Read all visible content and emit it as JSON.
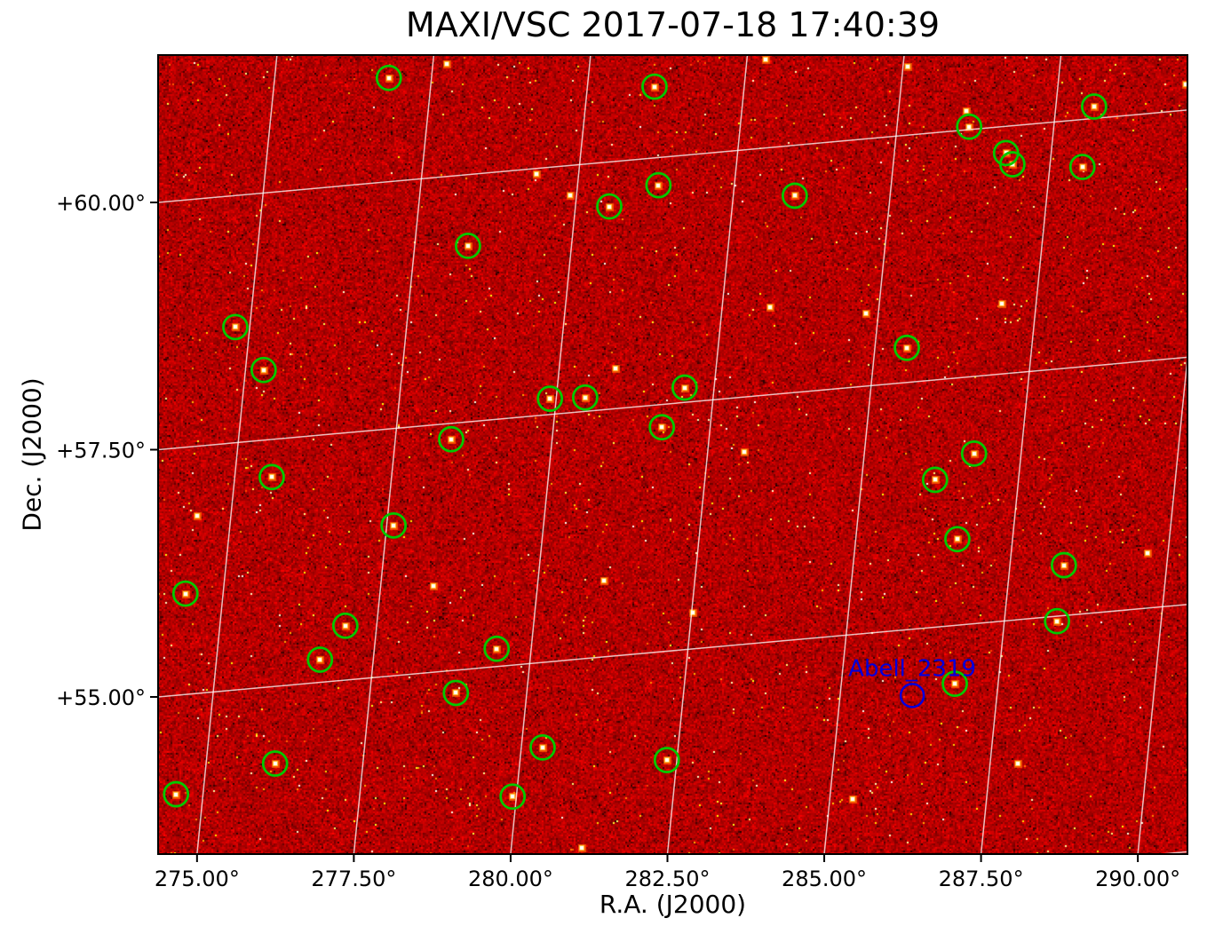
{
  "title": "MAXI/VSC 2017-07-18 17:40:39",
  "colors": {
    "grid": "#ffffff",
    "axes": "#000000",
    "source_circle": "#00c800",
    "annotation": "#0000dd",
    "background_sky": "#a50f00"
  },
  "chart_data": {
    "type": "heatmap",
    "title": "MAXI/VSC 2017-07-18 17:40:39",
    "xlabel": "R.A. (J2000)",
    "ylabel": "Dec. (J2000)",
    "x_axis": {
      "name": "R.A. (J2000)",
      "tick_values": [
        275.0,
        277.5,
        280.0,
        282.5,
        285.0,
        287.5,
        290.0
      ],
      "tick_labels": [
        "275.00°",
        "277.50°",
        "280.00°",
        "282.50°",
        "285.00°",
        "287.50°",
        "290.00°"
      ],
      "range_approx": [
        274.4,
        290.7
      ]
    },
    "y_axis": {
      "name": "Dec. (J2000)",
      "tick_values": [
        55.0,
        57.5,
        60.0
      ],
      "tick_labels": [
        "+55.00°",
        "+57.50°",
        "+60.00°"
      ],
      "range_approx": [
        53.1,
        61.6
      ]
    },
    "grid": {
      "on": true,
      "spacing_deg": 2.5,
      "color": "#ffffff",
      "style": "tilted celestial RA/Dec grid over scan-coordinate image"
    },
    "image": {
      "description": "X-ray intensity sky image, hot colormap: red mottled background, dark patches, bright white/yellow point sources",
      "colormap": "hot"
    },
    "detected_sources": [
      [
        276.82,
        61.05
      ],
      [
        281.07,
        60.72
      ],
      [
        288.11,
        60.12
      ],
      [
        286.15,
        60.03
      ],
      [
        286.78,
        59.73
      ],
      [
        286.9,
        59.61
      ],
      [
        288.02,
        59.52
      ],
      [
        281.29,
        59.72
      ],
      [
        283.48,
        59.49
      ],
      [
        280.54,
        59.55
      ],
      [
        278.35,
        59.28
      ],
      [
        274.77,
        58.67
      ],
      [
        275.29,
        58.21
      ],
      [
        285.51,
        57.85
      ],
      [
        279.9,
        57.66
      ],
      [
        280.46,
        57.64
      ],
      [
        282.03,
        57.65
      ],
      [
        281.73,
        57.27
      ],
      [
        278.39,
        57.34
      ],
      [
        286.75,
        56.72
      ],
      [
        275.59,
        57.12
      ],
      [
        286.17,
        56.49
      ],
      [
        277.61,
        56.52
      ],
      [
        286.62,
        55.87
      ],
      [
        288.36,
        55.51
      ],
      [
        274.4,
        56.02
      ],
      [
        288.34,
        54.95
      ],
      [
        277.0,
        55.55
      ],
      [
        276.65,
        55.23
      ],
      [
        279.45,
        55.18
      ],
      [
        286.81,
        54.41
      ],
      [
        278.87,
        54.77
      ],
      [
        280.34,
        54.14
      ],
      [
        282.34,
        53.9
      ],
      [
        276.1,
        54.22
      ],
      [
        274.57,
        54.0
      ],
      [
        279.94,
        53.67
      ]
    ],
    "bright_spots": [
      [
        277.72,
        61.14
      ],
      [
        282.8,
        60.89
      ],
      [
        285.08,
        60.69
      ],
      [
        286.08,
        60.19
      ],
      [
        279.33,
        59.94
      ],
      [
        279.9,
        59.7
      ],
      [
        283.26,
        58.39
      ],
      [
        284.8,
        58.24
      ],
      [
        286.95,
        58.21
      ],
      [
        280.9,
        57.91
      ],
      [
        274.46,
        56.8
      ],
      [
        278.34,
        55.87
      ],
      [
        281.05,
        55.77
      ],
      [
        289.67,
        55.56
      ],
      [
        283.08,
        56.95
      ],
      [
        282.52,
        55.37
      ],
      [
        287.94,
        53.55
      ],
      [
        285.37,
        53.34
      ],
      [
        281.12,
        53.09
      ],
      [
        289.54,
        60.26
      ]
    ],
    "annotations": [
      {
        "label": "Abell_2319",
        "ra": 286.15,
        "dec": 54.33,
        "color": "#0000dd"
      }
    ]
  }
}
